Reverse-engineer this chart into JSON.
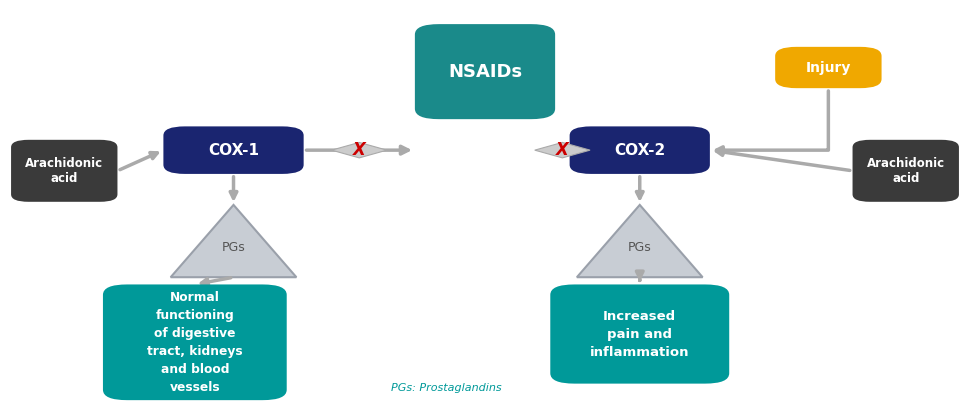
{
  "bg_color": "#ffffff",
  "dark_blue": "#1a2570",
  "teal_dark": "#1a8a8a",
  "teal_light": "#009999",
  "gray_dark": "#3a3a3a",
  "gold": "#f0a800",
  "triangle_gray_light": "#c8cdd4",
  "triangle_gray_dark": "#9aa0aa",
  "arrow_gray": "#aaaaaa",
  "red_x": "#cc0000",
  "white": "#ffffff",
  "text_teal": "#009999",
  "nsaids_label": "NSAIDs",
  "cox1_label": "COX-1",
  "cox2_label": "COX-2",
  "injury_label": "Injury",
  "arachidonic_label": "Arachidonic\nacid",
  "normal_label": "Normal\nfunctioning\nof digestive\ntract, kidneys\nand blood\nvessels",
  "pain_label": "Increased\npain and\ninflammation",
  "pgs_label": "PGs",
  "footnote": "PGs: Prostaglandins"
}
